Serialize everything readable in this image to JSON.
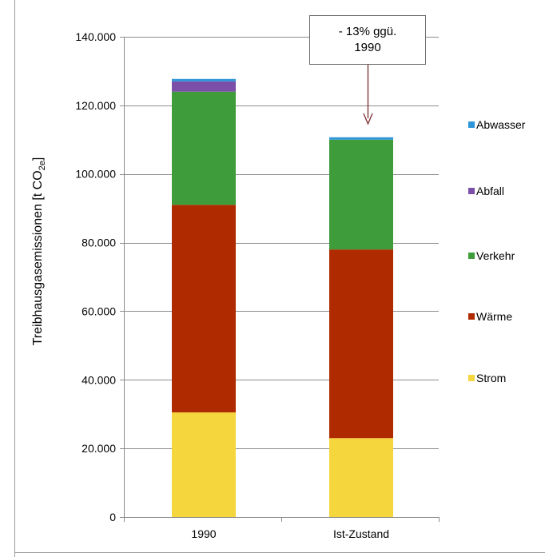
{
  "chart_data": {
    "type": "bar",
    "stacked": true,
    "categories": [
      "1990",
      "Ist-Zustand"
    ],
    "series": [
      {
        "name": "Strom",
        "values": [
          30500,
          23000
        ],
        "color": "#f5d63d"
      },
      {
        "name": "Wärme",
        "values": [
          60500,
          55000
        ],
        "color": "#b02a00"
      },
      {
        "name": "Verkehr",
        "values": [
          33000,
          32000
        ],
        "color": "#3e9c3a"
      },
      {
        "name": "Abfall",
        "values": [
          3000,
          0
        ],
        "color": "#7b4ea8"
      },
      {
        "name": "Abwasser",
        "values": [
          700,
          700
        ],
        "color": "#2e95d8"
      }
    ],
    "ylim": [
      0,
      140000
    ],
    "yticks": [
      0,
      20000,
      40000,
      60000,
      80000,
      100000,
      120000,
      140000
    ],
    "ytick_labels": [
      "0",
      "20.000",
      "40.000",
      "60.000",
      "80.000",
      "100.000",
      "120.000",
      "140.000"
    ],
    "ylabel": "Treibhausgasemissionen [t CO",
    "ylabel_sub": "2e",
    "ylabel_end": "]",
    "xlabel": "",
    "title": "",
    "grid": true,
    "legend": {
      "placement": "right",
      "order": [
        "Abwasser",
        "Abfall",
        "Verkehr",
        "Wärme",
        "Strom"
      ]
    },
    "annotation": {
      "lines": [
        "- 13% ggü.",
        "1990"
      ],
      "target_category": "Ist-Zustand"
    }
  }
}
